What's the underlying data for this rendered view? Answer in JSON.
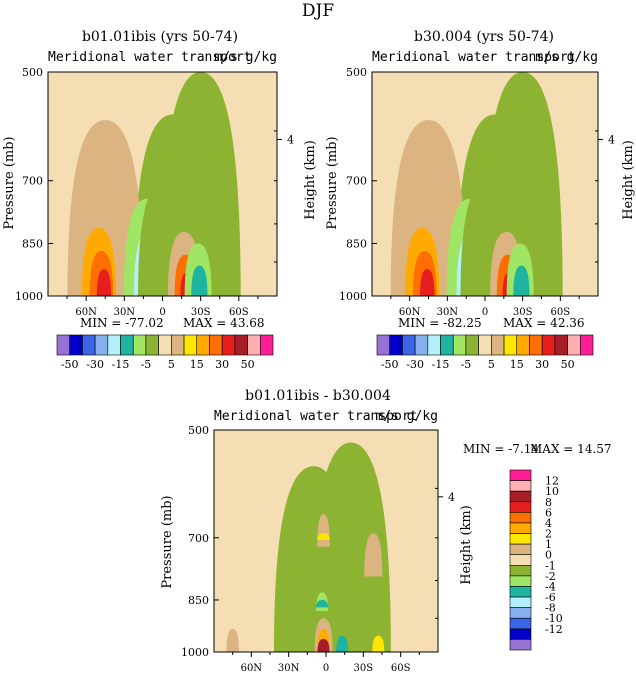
{
  "page_title": "DJF",
  "palette": {
    "colors": [
      "#9673d3",
      "#0000c8",
      "#3c64e6",
      "#87aff0",
      "#b4f0fa",
      "#1eb4a0",
      "#a0e664",
      "#8cb432",
      "#f5deb3",
      "#dcb482",
      "#ffe600",
      "#ffaa00",
      "#ff6e00",
      "#e61e1e",
      "#a51e28",
      "#ffafaf",
      "#ff1e96"
    ],
    "bg_color": "#f5deb3"
  },
  "panels": [
    {
      "title": "b01.01ibis (yrs 50-74)",
      "subtitle": "Meridional water transport",
      "units": "m/s g/kg",
      "ylabel": "Pressure (mb)",
      "y2label": "Height (km)",
      "y2ticks": [
        "4"
      ],
      "yticks": [
        "500",
        "700",
        "850",
        "1000"
      ],
      "xticks": [
        "60N",
        "30N",
        "0",
        "30S",
        "60S"
      ],
      "min_text": "MIN = -77.02",
      "max_text": "MAX = 43.68",
      "labelbar": [
        "-50",
        "-30",
        "-15",
        "-5",
        "5",
        "15",
        "30",
        "50"
      ]
    },
    {
      "title": "b30.004 (yrs 50-74)",
      "subtitle": "Meridional water transport",
      "units": "m/s g/kg",
      "ylabel": "Pressure (mb)",
      "y2label": "Height (km)",
      "y2ticks": [
        "4"
      ],
      "yticks": [
        "500",
        "700",
        "850",
        "1000"
      ],
      "xticks": [
        "60N",
        "30N",
        "0",
        "30S",
        "60S"
      ],
      "min_text": "MIN = -82.25",
      "max_text": "MAX = 42.36",
      "labelbar": [
        "-50",
        "-30",
        "-15",
        "-5",
        "5",
        "15",
        "30",
        "50"
      ]
    },
    {
      "title": "b01.01ibis - b30.004",
      "subtitle": "Meridional water transport",
      "units": "m/s g/kg",
      "ylabel": "Pressure (mb)",
      "y2label": "Height (km)",
      "y2ticks": [
        "4"
      ],
      "yticks": [
        "500",
        "700",
        "850",
        "1000"
      ],
      "xticks": [
        "60N",
        "30N",
        "0",
        "30S",
        "60S"
      ],
      "min_text": "MIN = -7.14",
      "max_text": "MAX = 14.57",
      "labelbar": [
        "12",
        "10",
        "8",
        "6",
        "4",
        "2",
        "1",
        "0",
        "-1",
        "-2",
        "-4",
        "-6",
        "-8",
        "-10",
        "-12"
      ]
    }
  ],
  "chart_data": [
    {
      "type": "heatmap",
      "title": "b01.01ibis (yrs 50-74)",
      "subtitle": "Meridional water transport",
      "units": "m/s g/kg",
      "x_axis": "latitude",
      "xticks": [
        "60N",
        "30N",
        "0",
        "30S",
        "60S"
      ],
      "ylabel": "Pressure (mb)",
      "y_axis_scale": "log-pressure",
      "yticks": [
        500,
        700,
        850,
        1000
      ],
      "ylim": [
        1000,
        500
      ],
      "xlim": [
        90,
        -90
      ],
      "y2label": "Height (km)",
      "contour_levels": [
        -50,
        -40,
        -30,
        -20,
        -15,
        -10,
        -5,
        0,
        5,
        10,
        15,
        20,
        30,
        40,
        50
      ],
      "min": -77.02,
      "max": 43.68,
      "background_value": 2,
      "features": [
        {
          "lat": -30,
          "p_low": 500,
          "p_high": 1000,
          "value": -2
        },
        {
          "lat": -8,
          "p_low": 570,
          "p_high": 1000,
          "value": -2
        },
        {
          "lat": 45,
          "p_low": 580,
          "p_high": 1000,
          "value": 8
        },
        {
          "lat": 12,
          "p_low": 740,
          "p_high": 1000,
          "value": -8
        },
        {
          "lat": 9,
          "p_low": 810,
          "p_high": 1000,
          "value": -20
        },
        {
          "lat": 7,
          "p_low": 850,
          "p_high": 1000,
          "value": -40
        },
        {
          "lat": -2,
          "p_low": 700,
          "p_high": 1000,
          "value": -5
        },
        {
          "lat": -17,
          "p_low": 820,
          "p_high": 1000,
          "value": 8
        },
        {
          "lat": -18,
          "p_low": 880,
          "p_high": 1000,
          "value": 20
        },
        {
          "lat": -19,
          "p_low": 930,
          "p_high": 1000,
          "value": 35
        },
        {
          "lat": -28,
          "p_low": 850,
          "p_high": 1000,
          "value": -8
        },
        {
          "lat": -29,
          "p_low": 910,
          "p_high": 1000,
          "value": -15
        },
        {
          "lat": 50,
          "p_low": 810,
          "p_high": 1000,
          "value": 15
        },
        {
          "lat": 48,
          "p_low": 870,
          "p_high": 1000,
          "value": 25
        },
        {
          "lat": 46,
          "p_low": 920,
          "p_high": 1000,
          "value": 35
        }
      ]
    },
    {
      "type": "heatmap",
      "title": "b30.004 (yrs 50-74)",
      "subtitle": "Meridional water transport",
      "units": "m/s g/kg",
      "x_axis": "latitude",
      "xticks": [
        "60N",
        "30N",
        "0",
        "30S",
        "60S"
      ],
      "ylabel": "Pressure (mb)",
      "y_axis_scale": "log-pressure",
      "yticks": [
        500,
        700,
        850,
        1000
      ],
      "ylim": [
        1000,
        500
      ],
      "xlim": [
        90,
        -90
      ],
      "y2label": "Height (km)",
      "contour_levels": [
        -50,
        -40,
        -30,
        -20,
        -15,
        -10,
        -5,
        0,
        5,
        10,
        15,
        20,
        30,
        40,
        50
      ],
      "min": -82.25,
      "max": 42.36,
      "background_value": 2,
      "features": [
        {
          "lat": -30,
          "p_low": 500,
          "p_high": 1000,
          "value": -2
        },
        {
          "lat": -8,
          "p_low": 570,
          "p_high": 1000,
          "value": -2
        },
        {
          "lat": 45,
          "p_low": 580,
          "p_high": 1000,
          "value": 8
        },
        {
          "lat": 12,
          "p_low": 740,
          "p_high": 1000,
          "value": -8
        },
        {
          "lat": 9,
          "p_low": 810,
          "p_high": 1000,
          "value": -20
        },
        {
          "lat": 7,
          "p_low": 850,
          "p_high": 1000,
          "value": -40
        },
        {
          "lat": -2,
          "p_low": 700,
          "p_high": 1000,
          "value": -5
        },
        {
          "lat": -17,
          "p_low": 820,
          "p_high": 1000,
          "value": 8
        },
        {
          "lat": -18,
          "p_low": 880,
          "p_high": 1000,
          "value": 20
        },
        {
          "lat": -19,
          "p_low": 930,
          "p_high": 1000,
          "value": 35
        },
        {
          "lat": -28,
          "p_low": 850,
          "p_high": 1000,
          "value": -8
        },
        {
          "lat": -29,
          "p_low": 910,
          "p_high": 1000,
          "value": -15
        },
        {
          "lat": 50,
          "p_low": 810,
          "p_high": 1000,
          "value": 15
        },
        {
          "lat": 48,
          "p_low": 870,
          "p_high": 1000,
          "value": 25
        },
        {
          "lat": 46,
          "p_low": 920,
          "p_high": 1000,
          "value": 35
        }
      ]
    },
    {
      "type": "heatmap",
      "title": "b01.01ibis - b30.004",
      "subtitle": "Meridional water transport",
      "units": "m/s g/kg",
      "x_axis": "latitude",
      "xticks": [
        "60N",
        "30N",
        "0",
        "30S",
        "60S"
      ],
      "ylabel": "Pressure (mb)",
      "y_axis_scale": "log-pressure",
      "yticks": [
        500,
        700,
        850,
        1000
      ],
      "ylim": [
        1000,
        500
      ],
      "xlim": [
        90,
        -90
      ],
      "y2label": "Height (km)",
      "contour_levels": [
        -12,
        -10,
        -8,
        -6,
        -4,
        -2,
        -1,
        0,
        1,
        2,
        4,
        6,
        8,
        10,
        12
      ],
      "min": -7.14,
      "max": 14.57,
      "background_value": 0.5,
      "features": [
        {
          "lat": -20,
          "p_low": 520,
          "p_high": 1000,
          "value": -0.5
        },
        {
          "lat": 10,
          "p_low": 560,
          "p_high": 1000,
          "value": -0.5
        },
        {
          "lat": 2,
          "p_low": 650,
          "p_high": 720,
          "value": 1.5
        },
        {
          "lat": 2,
          "p_low": 690,
          "p_high": 705,
          "value": 3
        },
        {
          "lat": -38,
          "p_low": 690,
          "p_high": 790,
          "value": 1.5
        },
        {
          "lat": 3,
          "p_low": 830,
          "p_high": 880,
          "value": -1.5
        },
        {
          "lat": 3,
          "p_low": 850,
          "p_high": 870,
          "value": -3
        },
        {
          "lat": 2,
          "p_low": 900,
          "p_high": 1000,
          "value": 1.5
        },
        {
          "lat": 2,
          "p_low": 930,
          "p_high": 1000,
          "value": 5
        },
        {
          "lat": 2,
          "p_low": 960,
          "p_high": 1000,
          "value": 11
        },
        {
          "lat": -13,
          "p_low": 950,
          "p_high": 1000,
          "value": -3
        },
        {
          "lat": -42,
          "p_low": 950,
          "p_high": 1000,
          "value": 3
        },
        {
          "lat": 75,
          "p_low": 930,
          "p_high": 1000,
          "value": 1.5
        }
      ]
    }
  ]
}
